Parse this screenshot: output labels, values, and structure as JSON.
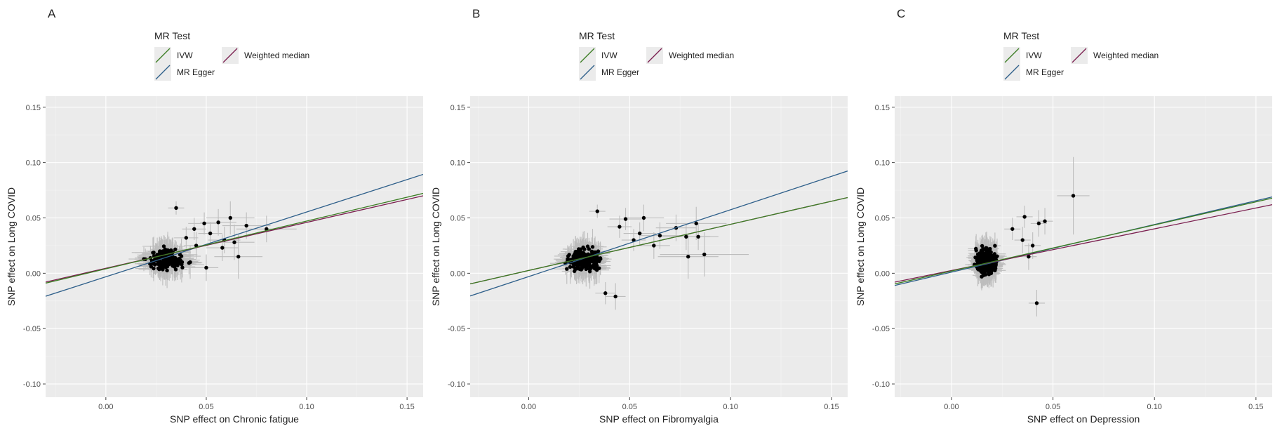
{
  "legend": {
    "title": "MR Test",
    "items": [
      {
        "key": "ivw",
        "label": "IVW",
        "color": "#3b7d23"
      },
      {
        "key": "weighted_median",
        "label": "Weighted median",
        "color": "#7b1f4f"
      },
      {
        "key": "mr_egger",
        "label": "MR Egger",
        "color": "#2e5f8a"
      }
    ]
  },
  "chart_data": [
    {
      "type": "scatter",
      "panel": "A",
      "xlabel": "SNP effect on Chronic fatigue",
      "ylabel": "SNP effect on Long COVID",
      "xlim": [
        -0.03,
        0.158
      ],
      "ylim": [
        -0.112,
        0.16
      ],
      "xticks": [
        0.0,
        0.05,
        0.1,
        0.15
      ],
      "xtick_labels": [
        "0.00",
        "0.05",
        "0.10",
        "0.15"
      ],
      "yticks": [
        -0.1,
        -0.05,
        0.0,
        0.05,
        0.1,
        0.15
      ],
      "ytick_labels": [
        "-0.10",
        "-0.05",
        "0.00",
        "0.05",
        "0.10",
        "0.15"
      ],
      "grid": true,
      "lines": [
        {
          "key": "ivw",
          "intercept": 0.004,
          "slope": 0.4314
        },
        {
          "key": "weighted_median",
          "intercept": 0.0045,
          "slope": 0.4144
        },
        {
          "key": "mr_egger",
          "intercept": -0.0032,
          "slope": 0.5855
        }
      ],
      "cluster": {
        "x_center": 0.03,
        "x_spread": 0.007,
        "y_center": 0.012,
        "y_spread": 0.008,
        "n": 180,
        "seed": 11,
        "xerr": 0.008,
        "yerr": 0.012
      },
      "points": [
        {
          "x": 0.035,
          "y": 0.059,
          "xerr": 0.004,
          "yerr": 0.006
        },
        {
          "x": 0.049,
          "y": 0.045,
          "xerr": 0.008,
          "yerr": 0.01
        },
        {
          "x": 0.056,
          "y": 0.046,
          "xerr": 0.009,
          "yerr": 0.012
        },
        {
          "x": 0.062,
          "y": 0.05,
          "xerr": 0.012,
          "yerr": 0.015
        },
        {
          "x": 0.07,
          "y": 0.043,
          "xerr": 0.012,
          "yerr": 0.012
        },
        {
          "x": 0.08,
          "y": 0.04,
          "xerr": 0.015,
          "yerr": 0.012
        },
        {
          "x": 0.064,
          "y": 0.028,
          "xerr": 0.01,
          "yerr": 0.016
        },
        {
          "x": 0.066,
          "y": 0.015,
          "xerr": 0.012,
          "yerr": 0.02
        },
        {
          "x": 0.059,
          "y": 0.03,
          "xerr": 0.008,
          "yerr": 0.012
        },
        {
          "x": 0.052,
          "y": 0.036,
          "xerr": 0.006,
          "yerr": 0.01
        },
        {
          "x": 0.045,
          "y": 0.025,
          "xerr": 0.006,
          "yerr": 0.012
        },
        {
          "x": 0.05,
          "y": 0.005,
          "xerr": 0.006,
          "yerr": 0.012
        },
        {
          "x": 0.042,
          "y": 0.01,
          "xerr": 0.006,
          "yerr": 0.015
        },
        {
          "x": 0.04,
          "y": 0.032,
          "xerr": 0.006,
          "yerr": 0.01
        },
        {
          "x": 0.044,
          "y": 0.04,
          "xerr": 0.006,
          "yerr": 0.01
        },
        {
          "x": 0.058,
          "y": 0.023,
          "xerr": 0.008,
          "yerr": 0.012
        }
      ]
    },
    {
      "type": "scatter",
      "panel": "B",
      "xlabel": "SNP effect on Fibromyalgia",
      "ylabel": "SNP effect on Long COVID",
      "xlim": [
        -0.029,
        0.158
      ],
      "ylim": [
        -0.112,
        0.16
      ],
      "xticks": [
        0.0,
        0.05,
        0.1,
        0.15
      ],
      "xtick_labels": [
        "0.00",
        "0.05",
        "0.10",
        "0.15"
      ],
      "yticks": [
        -0.1,
        -0.05,
        0.0,
        0.05,
        0.1,
        0.15
      ],
      "ytick_labels": [
        "-0.10",
        "-0.05",
        "0.00",
        "0.05",
        "0.10",
        "0.15"
      ],
      "grid": true,
      "lines": [
        {
          "key": "ivw",
          "intercept": 0.0025,
          "slope": 0.4171
        },
        {
          "key": "weighted_median",
          "intercept": 0.0025,
          "slope": 0.4171
        },
        {
          "key": "mr_egger",
          "intercept": -0.003,
          "slope": 0.6037
        }
      ],
      "cluster": {
        "x_center": 0.027,
        "x_spread": 0.006,
        "y_center": 0.012,
        "y_spread": 0.008,
        "n": 230,
        "seed": 23,
        "xerr": 0.006,
        "yerr": 0.012
      },
      "points": [
        {
          "x": 0.034,
          "y": 0.056,
          "xerr": 0.004,
          "yerr": 0.006
        },
        {
          "x": 0.048,
          "y": 0.049,
          "xerr": 0.008,
          "yerr": 0.01
        },
        {
          "x": 0.057,
          "y": 0.05,
          "xerr": 0.01,
          "yerr": 0.012
        },
        {
          "x": 0.065,
          "y": 0.034,
          "xerr": 0.01,
          "yerr": 0.012
        },
        {
          "x": 0.073,
          "y": 0.041,
          "xerr": 0.01,
          "yerr": 0.012
        },
        {
          "x": 0.083,
          "y": 0.045,
          "xerr": 0.015,
          "yerr": 0.015
        },
        {
          "x": 0.078,
          "y": 0.033,
          "xerr": 0.012,
          "yerr": 0.012
        },
        {
          "x": 0.084,
          "y": 0.033,
          "xerr": 0.01,
          "yerr": 0.012
        },
        {
          "x": 0.079,
          "y": 0.015,
          "xerr": 0.015,
          "yerr": 0.02
        },
        {
          "x": 0.087,
          "y": 0.017,
          "xerr": 0.022,
          "yerr": 0.02
        },
        {
          "x": 0.043,
          "y": -0.021,
          "xerr": 0.005,
          "yerr": 0.012
        },
        {
          "x": 0.038,
          "y": -0.018,
          "xerr": 0.005,
          "yerr": 0.01
        },
        {
          "x": 0.062,
          "y": 0.025,
          "xerr": 0.008,
          "yerr": 0.012
        },
        {
          "x": 0.052,
          "y": 0.03,
          "xerr": 0.006,
          "yerr": 0.01
        },
        {
          "x": 0.055,
          "y": 0.036,
          "xerr": 0.008,
          "yerr": 0.01
        },
        {
          "x": 0.045,
          "y": 0.042,
          "xerr": 0.006,
          "yerr": 0.01
        }
      ]
    },
    {
      "type": "scatter",
      "panel": "C",
      "xlabel": "SNP effect on Depression",
      "ylabel": "SNP effect on Long COVID",
      "xlim": [
        -0.028,
        0.158
      ],
      "ylim": [
        -0.112,
        0.16
      ],
      "xticks": [
        0.0,
        0.05,
        0.1,
        0.15
      ],
      "xtick_labels": [
        "0.00",
        "0.05",
        "0.10",
        "0.15"
      ],
      "yticks": [
        -0.1,
        -0.05,
        0.0,
        0.05,
        0.1,
        0.15
      ],
      "ytick_labels": [
        "-0.10",
        "-0.05",
        "0.00",
        "0.05",
        "0.10",
        "0.15"
      ],
      "grid": true,
      "lines": [
        {
          "key": "ivw",
          "intercept": 0.002,
          "slope": 0.4167
        },
        {
          "key": "weighted_median",
          "intercept": 0.0025,
          "slope": 0.3763
        },
        {
          "key": "mr_egger",
          "intercept": 0.001,
          "slope": 0.4301
        }
      ],
      "cluster": {
        "x_center": 0.017,
        "x_spread": 0.004,
        "y_center": 0.01,
        "y_spread": 0.01,
        "n": 320,
        "seed": 37,
        "xerr": 0.004,
        "yerr": 0.012
      },
      "points": [
        {
          "x": 0.06,
          "y": 0.07,
          "xerr": 0.008,
          "yerr": 0.035
        },
        {
          "x": 0.046,
          "y": 0.047,
          "xerr": 0.004,
          "yerr": 0.012
        },
        {
          "x": 0.043,
          "y": 0.045,
          "xerr": 0.004,
          "yerr": 0.012
        },
        {
          "x": 0.036,
          "y": 0.051,
          "xerr": 0.004,
          "yerr": 0.01
        },
        {
          "x": 0.042,
          "y": -0.027,
          "xerr": 0.004,
          "yerr": 0.012
        },
        {
          "x": 0.04,
          "y": 0.025,
          "xerr": 0.004,
          "yerr": 0.012
        },
        {
          "x": 0.038,
          "y": 0.015,
          "xerr": 0.004,
          "yerr": 0.012
        },
        {
          "x": 0.035,
          "y": 0.03,
          "xerr": 0.004,
          "yerr": 0.012
        },
        {
          "x": 0.03,
          "y": 0.04,
          "xerr": 0.004,
          "yerr": 0.01
        }
      ]
    }
  ]
}
